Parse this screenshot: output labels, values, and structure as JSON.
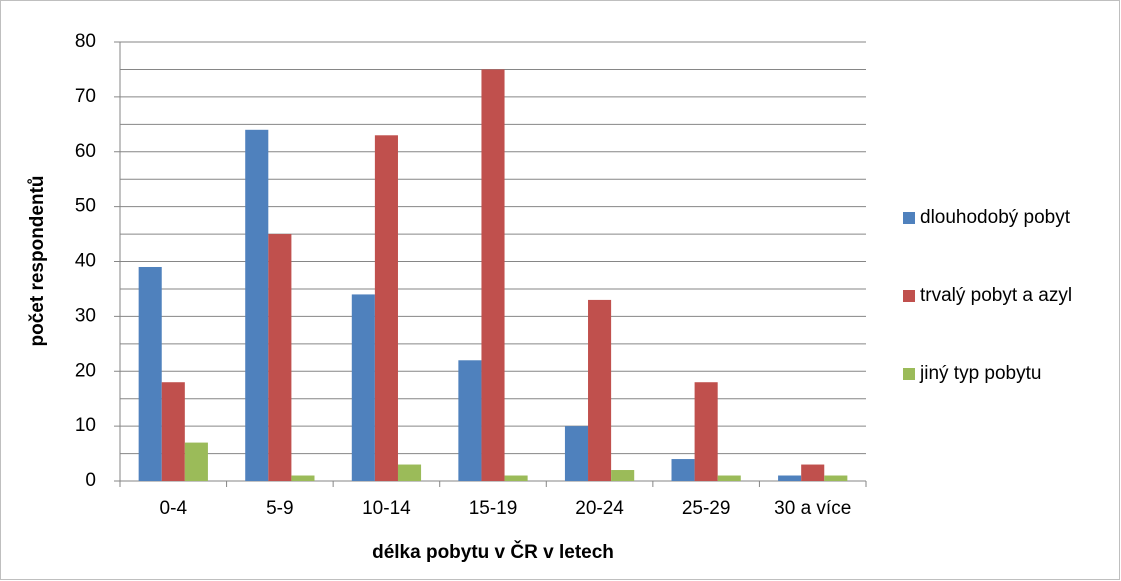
{
  "chart_data": {
    "type": "bar",
    "x_label": "délka pobytu v ČR v letech",
    "y_label": "počet respondentů",
    "categories": [
      "0-4",
      "5-9",
      "10-14",
      "15-19",
      "20-24",
      "25-29",
      "30 a více"
    ],
    "series": [
      {
        "name": "dlouhodobý pobyt",
        "color": "#4f81bd",
        "values": [
          39,
          64,
          34,
          22,
          10,
          4,
          1
        ]
      },
      {
        "name": "trvalý pobyt a azyl",
        "color": "#c0504d",
        "values": [
          18,
          45,
          63,
          75,
          33,
          18,
          3
        ]
      },
      {
        "name": "jiný typ pobytu",
        "color": "#9bbb59",
        "values": [
          7,
          1,
          3,
          1,
          2,
          1,
          1
        ]
      }
    ],
    "ylim": [
      0,
      80
    ],
    "yticks": [
      0,
      10,
      20,
      30,
      40,
      50,
      60,
      70,
      80
    ],
    "minor_yticks": [
      5,
      15,
      25,
      35,
      45,
      55,
      65,
      75
    ],
    "grid": true,
    "legend": "right"
  }
}
